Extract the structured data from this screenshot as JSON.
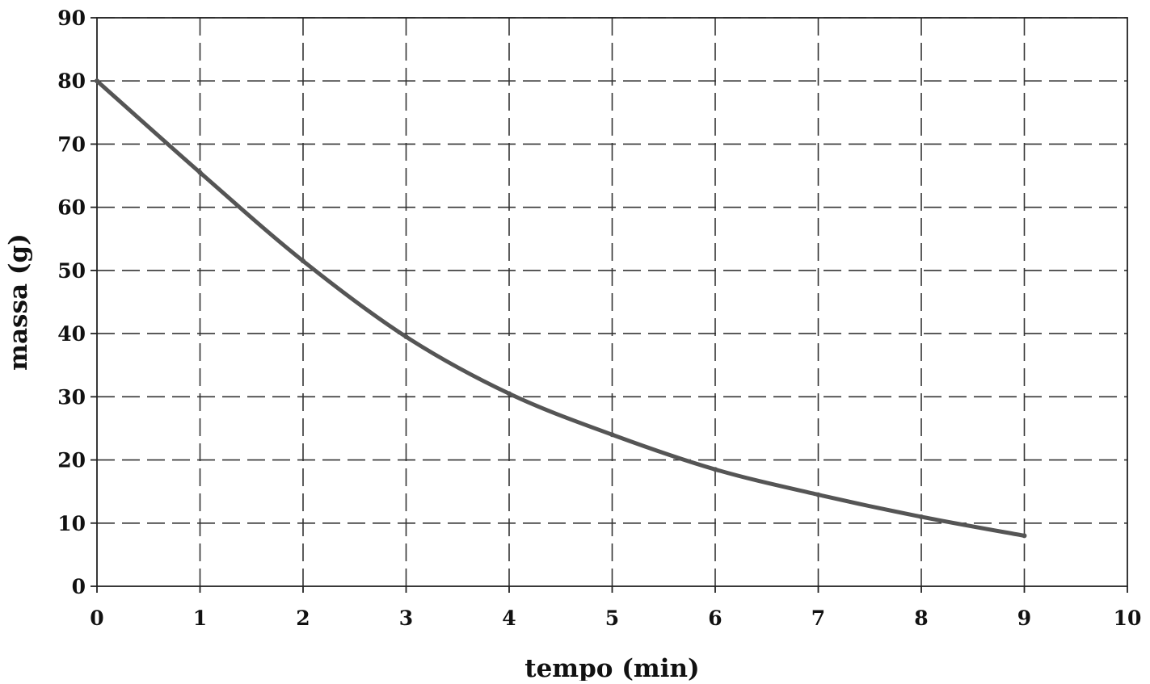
{
  "chart_data": {
    "type": "line",
    "title": "",
    "xlabel": "tempo (min)",
    "ylabel": "massa (g)",
    "xlim": [
      0,
      10
    ],
    "ylim": [
      0,
      90
    ],
    "xticks": [
      0,
      1,
      2,
      3,
      4,
      5,
      6,
      7,
      8,
      9,
      10
    ],
    "yticks": [
      0,
      10,
      20,
      30,
      40,
      50,
      60,
      70,
      80,
      90
    ],
    "grid": true,
    "grid_style": "dashed",
    "legend": "none",
    "series": [
      {
        "x": [
          0,
          1,
          2,
          3,
          4,
          5,
          6,
          7,
          8,
          9
        ],
        "values": [
          80,
          65.5,
          51.5,
          39.5,
          30.5,
          24,
          18.5,
          14.5,
          11,
          8
        ]
      }
    ],
    "colors": {
      "line": "#555555",
      "grid": "#333333",
      "axis": "#222222",
      "text": "#111111"
    }
  }
}
